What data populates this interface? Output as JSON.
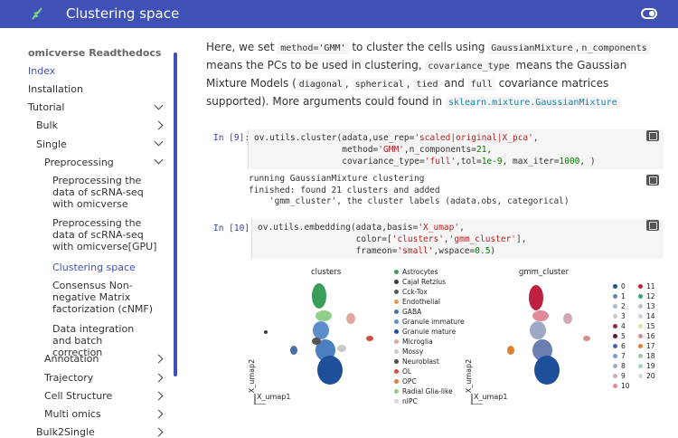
{
  "header": {
    "title": "Clustering space"
  },
  "sidebar": {
    "heading": "omicverse Readthedocs",
    "items": [
      {
        "label": "Index",
        "active": true
      },
      {
        "label": "Installation"
      },
      {
        "label": "Tutorial"
      },
      {
        "label": "Bulk"
      },
      {
        "label": "Single"
      },
      {
        "label": "Preprocessing"
      },
      {
        "label": "Preprocessing the data of scRNA-seq with omicverse"
      },
      {
        "label": "Preprocessing the data of scRNA-seq with omicverse[GPU]"
      },
      {
        "label": "Clustering space",
        "active": true
      },
      {
        "label": "Consensus Non-negative Matrix factorization (cNMF)"
      },
      {
        "label": "Data integration and batch correction"
      },
      {
        "label": "Annotation"
      },
      {
        "label": "Trajectory"
      },
      {
        "label": "Cell Structure"
      },
      {
        "label": "Multi omics"
      },
      {
        "label": "Bulk2Single"
      }
    ]
  },
  "content": {
    "para": {
      "t1": "Here, we set ",
      "c1": "method='GMM'",
      "t2": " to cluster the cells using ",
      "c2": "GaussianMixture",
      "t3": ",",
      "c3": "n_components",
      "t4": " means the PCs to be used in clustering, ",
      "c4": "covariance_type",
      "t5": " means the Gaussian Mixture Models (",
      "c5": "diagonal",
      "t6": ", ",
      "c6": "spherical",
      "t7": ", ",
      "c7": "tied",
      "t8": " and ",
      "c8": "full",
      "t9": " covariance matrices supported). More arguments could found in ",
      "link": "sklearn.mixture.GaussianMixture"
    },
    "cell9": {
      "prompt": "In [9]:",
      "l1a": "ov.utils.cluster(adata,use_rep=",
      "l1s": "'scaled|original|X_pca'",
      "l1b": ",",
      "l2a": "                 method=",
      "l2s": "'GMM'",
      "l2b": ",n_components=",
      "l2n": "21",
      "l2c": ",",
      "l3a": "                 covariance_type=",
      "l3s": "'full'",
      "l3b": ",tol=",
      "l3n": "1e-9",
      "l3c": ", max_iter=",
      "l3n2": "1000",
      "l3d": ", )"
    },
    "output9": "running GaussianMixture clustering\nfinished: found 21 clusters and added\n    'gmm_cluster', the cluster labels (adata.obs, categorical)",
    "cell10": {
      "prompt": "In [10]:",
      "l1a": "ov.utils.embedding(adata,basis=",
      "l1s": "'X_umap'",
      "l1b": ",",
      "l2a": "                   color=[",
      "l2s": "'clusters'",
      "l2b": ",",
      "l2s2": "'gmm_cluster'",
      "l2c": "],",
      "l3a": "                   frameon=",
      "l3s": "'small'",
      "l3b": ",wspace=",
      "l3n": "0.5",
      "l3c": ")"
    }
  },
  "plots": {
    "left": {
      "title": "clusters",
      "xlabel": "X_umap1",
      "ylabel": "X_umap2",
      "legend": [
        {
          "label": "Astrocytes",
          "color": "#3a9e5a"
        },
        {
          "label": "Cajal Retzius",
          "color": "#3b3b3b"
        },
        {
          "label": "Cck-Tox",
          "color": "#555555"
        },
        {
          "label": "Endothelial",
          "color": "#e59a57"
        },
        {
          "label": "GABA",
          "color": "#4a6fa5"
        },
        {
          "label": "Granule immature",
          "color": "#5c8ec9"
        },
        {
          "label": "Granule mature",
          "color": "#1e4f9a"
        },
        {
          "label": "Microglia",
          "color": "#e3a7a0"
        },
        {
          "label": "Mossy",
          "color": "#c9c9c9"
        },
        {
          "label": "Neuroblast",
          "color": "#4b4b4b"
        },
        {
          "label": "OL",
          "color": "#d44d3d"
        },
        {
          "label": "OPC",
          "color": "#e07a4a"
        },
        {
          "label": "Radial Glia-like",
          "color": "#8fcf8a"
        },
        {
          "label": "nIPC",
          "color": "#d8d8d8"
        }
      ]
    },
    "right": {
      "title": "gmm_cluster",
      "xlabel": "X_umap1",
      "ylabel": "X_umap2",
      "legend": [
        {
          "label": "0",
          "color": "#1e4f9a"
        },
        {
          "label": "1",
          "color": "#6c7fb5"
        },
        {
          "label": "2",
          "color": "#b0b8d8"
        },
        {
          "label": "3",
          "color": "#c9c9c9"
        },
        {
          "label": "4",
          "color": "#8a2a4a"
        },
        {
          "label": "5",
          "color": "#5a1a2a"
        },
        {
          "label": "6",
          "color": "#4a5fc0"
        },
        {
          "label": "7",
          "color": "#7a9ad0"
        },
        {
          "label": "8",
          "color": "#a0a8c8"
        },
        {
          "label": "9",
          "color": "#d0a8b8"
        },
        {
          "label": "10",
          "color": "#e08a9a"
        },
        {
          "label": "11",
          "color": "#c02040"
        },
        {
          "label": "12",
          "color": "#3aa070"
        },
        {
          "label": "13",
          "color": "#b8c0d0"
        },
        {
          "label": "14",
          "color": "#d0d0d0"
        },
        {
          "label": "15",
          "color": "#e0e0a0"
        },
        {
          "label": "16",
          "color": "#d09090"
        },
        {
          "label": "17",
          "color": "#e08030"
        },
        {
          "label": "18",
          "color": "#a0c8a0"
        },
        {
          "label": "19",
          "color": "#a0d0c0"
        },
        {
          "label": "20",
          "color": "#d8d8d8"
        }
      ]
    }
  }
}
